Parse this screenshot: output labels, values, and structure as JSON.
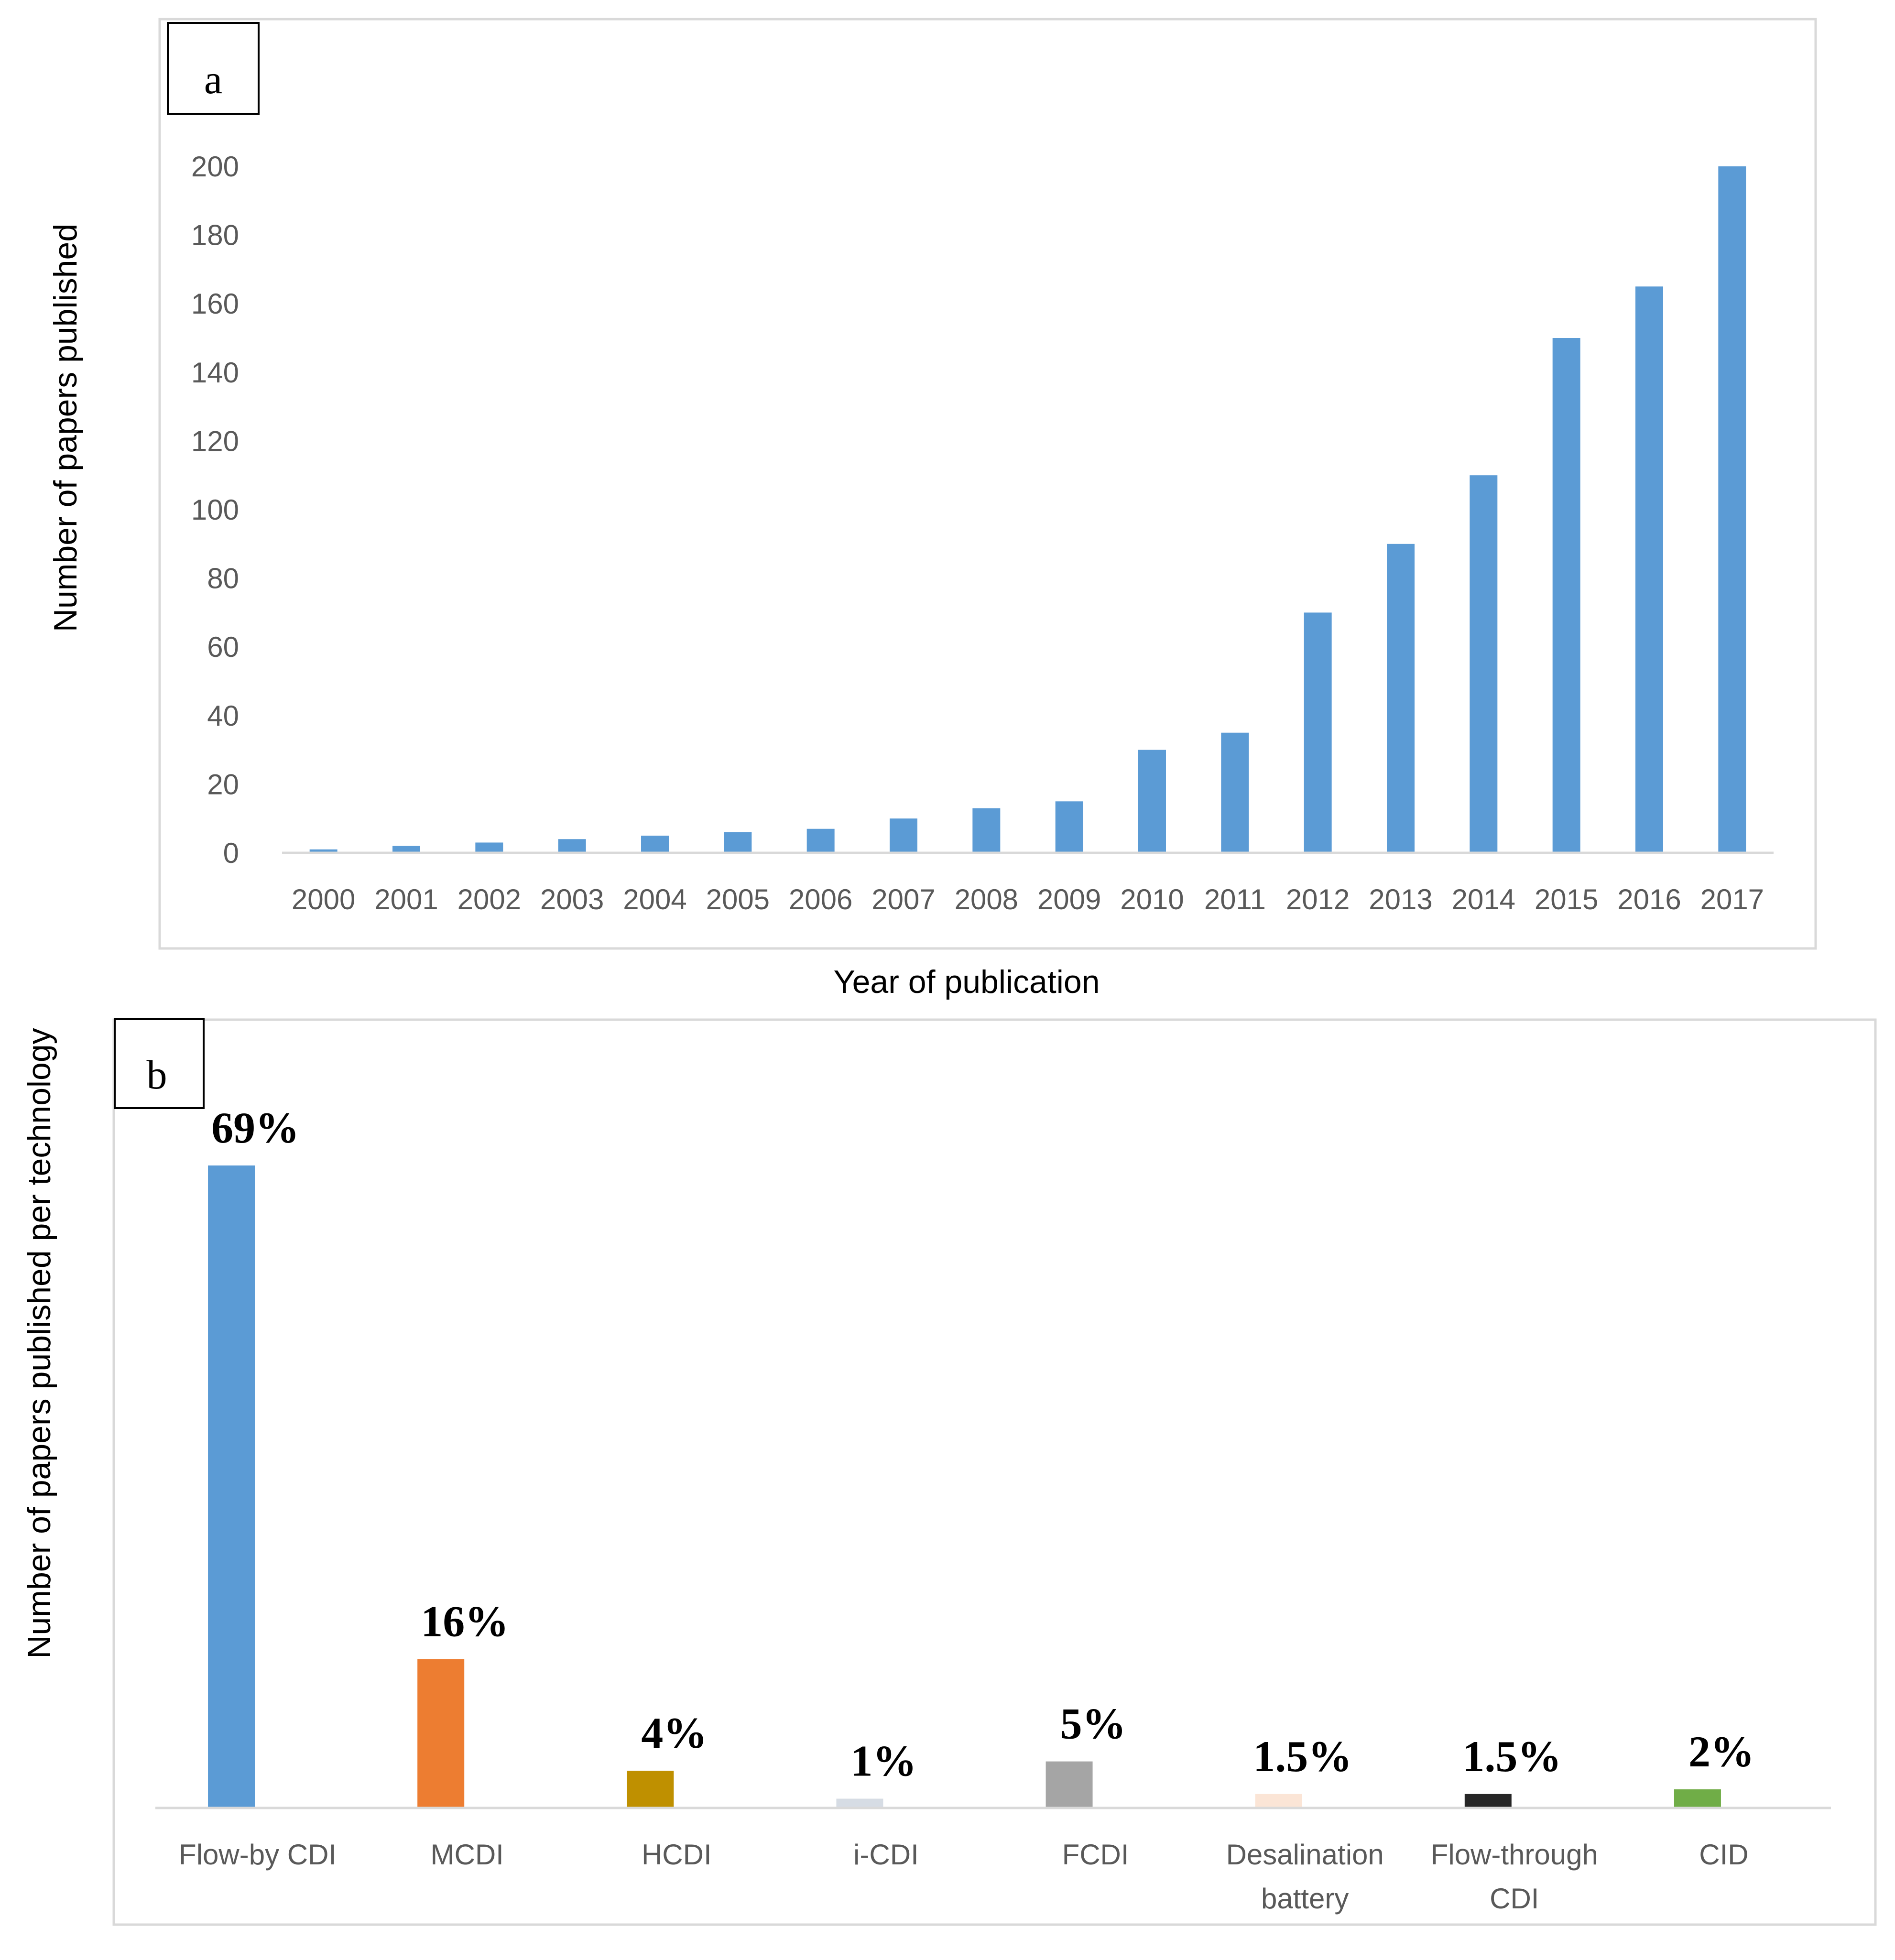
{
  "chart_data": [
    {
      "panel": "a",
      "type": "bar",
      "xlabel": "Year of publication",
      "ylabel": "Number of papers published",
      "ylim": [
        0,
        200
      ],
      "yticks": [
        "0",
        "20",
        "40",
        "60",
        "80",
        "100",
        "120",
        "140",
        "160",
        "180",
        "200"
      ],
      "categories": [
        "2000",
        "2001",
        "2002",
        "2003",
        "2004",
        "2005",
        "2006",
        "2007",
        "2008",
        "2009",
        "2010",
        "2011",
        "2012",
        "2013",
        "2014",
        "2015",
        "2016",
        "2017"
      ],
      "values": [
        1,
        2,
        3,
        4,
        5,
        6,
        7,
        10,
        13,
        15,
        30,
        35,
        70,
        90,
        110,
        150,
        165,
        200
      ],
      "color": "#5b9bd5",
      "grid": false
    },
    {
      "panel": "b",
      "type": "bar",
      "xlabel": "",
      "ylabel": "Number of papers published per technology",
      "categories": [
        {
          "line1": "Flow-by CDI",
          "line2": ""
        },
        {
          "line1": "MCDI",
          "line2": ""
        },
        {
          "line1": "HCDI",
          "line2": ""
        },
        {
          "line1": "i-CDI",
          "line2": ""
        },
        {
          "line1": "FCDI",
          "line2": ""
        },
        {
          "line1": "Desalination",
          "line2": "battery"
        },
        {
          "line1": "Flow-through",
          "line2": "CDI"
        },
        {
          "line1": "CID",
          "line2": ""
        }
      ],
      "values": [
        69,
        16,
        4,
        1,
        5,
        1.5,
        1.5,
        2
      ],
      "labels": [
        "69%",
        "16%",
        "4%",
        "1%",
        "5%",
        "1.5%",
        "1.5%",
        "2%"
      ],
      "colors": [
        "#5b9bd5",
        "#ed7d31",
        "#bf9000",
        "#d6dce4",
        "#a5a5a5",
        "#fbe5d6",
        "#262626",
        "#70ad47"
      ],
      "ylim": [
        0,
        69
      ],
      "grid": false
    }
  ]
}
